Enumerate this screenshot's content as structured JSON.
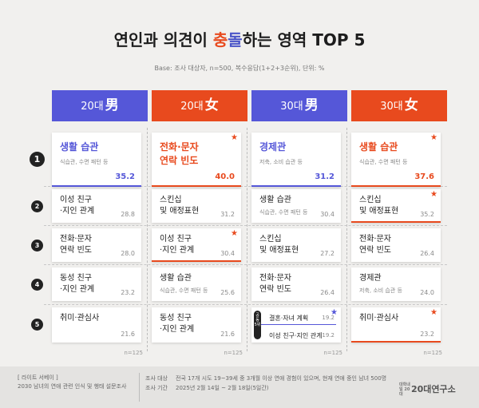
{
  "title": {
    "pre": "연인과 의견이 ",
    "hl1": "충",
    "hl2": "돌",
    "post": "하는 영역 TOP 5"
  },
  "base_note": "Base: 조사 대상자, n=500, 복수응답(1+2+3순위), 단위: %",
  "columns": [
    {
      "age": "20대",
      "gender": "男",
      "n": "n=125"
    },
    {
      "age": "20대",
      "gender": "女",
      "n": "n=125"
    },
    {
      "age": "30대",
      "gender": "男",
      "n": "n=125"
    },
    {
      "age": "30대",
      "gender": "女",
      "n": "n=125"
    }
  ],
  "ranks": [
    "1",
    "2",
    "3",
    "4",
    "5"
  ],
  "tie_label": "공동 5위",
  "chart_data": {
    "type": "table",
    "title": "연인과 의견이 충돌하는 영역 TOP 5",
    "subtitle": "Base: 조사 대상자, n=500, 복수응답(1+2+3순위), 단위: %",
    "columns": [
      "20대 男",
      "20대 女",
      "30대 男",
      "30대 女"
    ],
    "rows": [
      [
        {
          "label": "생활 습관",
          "sub": "식습관, 수면 패턴 등",
          "value": "35.2",
          "star": false
        },
        {
          "label": "전화·문자\n연락 빈도",
          "sub": "",
          "value": "40.0",
          "star": true
        },
        {
          "label": "경제관",
          "sub": "저축, 소비 습관 등",
          "value": "31.2",
          "star": false
        },
        {
          "label": "생활 습관",
          "sub": "식습관, 수면 패턴 등",
          "value": "37.6",
          "star": true
        }
      ],
      [
        {
          "label": "이성 친구\n·지인 관계",
          "sub": "",
          "value": "28.8",
          "star": false
        },
        {
          "label": "스킨십\n및 애정표현",
          "sub": "",
          "value": "31.2",
          "star": false
        },
        {
          "label": "생활 습관",
          "sub": "식습관, 수면 패턴 등",
          "value": "30.4",
          "star": false
        },
        {
          "label": "스킨십\n및 애정표현",
          "sub": "",
          "value": "35.2",
          "star": true
        }
      ],
      [
        {
          "label": "전화·문자\n연락 빈도",
          "sub": "",
          "value": "28.0",
          "star": false
        },
        {
          "label": "이성 친구\n·지인 관계",
          "sub": "",
          "value": "30.4",
          "star": true
        },
        {
          "label": "스킨십\n및 애정표현",
          "sub": "",
          "value": "27.2",
          "star": false
        },
        {
          "label": "전화·문자\n연락 빈도",
          "sub": "",
          "value": "26.4",
          "star": false
        }
      ],
      [
        {
          "label": "동성 친구\n·지인 관계",
          "sub": "",
          "value": "23.2",
          "star": false
        },
        {
          "label": "생활 습관",
          "sub": "식습관, 수면 패턴 등",
          "value": "25.6",
          "star": false
        },
        {
          "label": "전화·문자\n연락 빈도",
          "sub": "",
          "value": "26.4",
          "star": false
        },
        {
          "label": "경제관",
          "sub": "저축, 소비 습관 등",
          "value": "24.0",
          "star": false
        }
      ],
      [
        {
          "label": "취미·관심사",
          "sub": "",
          "value": "21.6",
          "star": false
        },
        {
          "label": "동성 친구\n·지인 관계",
          "sub": "",
          "value": "21.6",
          "star": false
        },
        {
          "tie": [
            {
              "label": "결혼·자녀 계획",
              "value": "19.2",
              "star": true
            },
            {
              "label": "이성 친구·지인 관계",
              "value": "19.2",
              "star": false
            }
          ]
        },
        {
          "label": "취미·관심사",
          "sub": "",
          "value": "23.2",
          "star": true
        }
      ]
    ]
  },
  "footer": {
    "source_line1": "[ 라이트 서베이 ]",
    "source_line2": "2030 남녀의 연애 관련 인식 및 행태 설문조사",
    "target_key": "조사 대상",
    "target_val": "전국 17개 시도 19~39세 중 3개월 이상 연애 경험이 있으며, 현재 연애 중인 남녀 500명",
    "period_key": "조사 기간",
    "period_val": "2025년 2월 14일 ~ 2월 18일(5일간)",
    "logo_mark": "대학내일 20대",
    "logo_text": "20대연구소"
  },
  "colors": {
    "male": "#5557d8",
    "female": "#e84a1e",
    "star_orange": "#e84a1e",
    "star_blue": "#5557d8"
  },
  "icons": {
    "star": "★"
  }
}
